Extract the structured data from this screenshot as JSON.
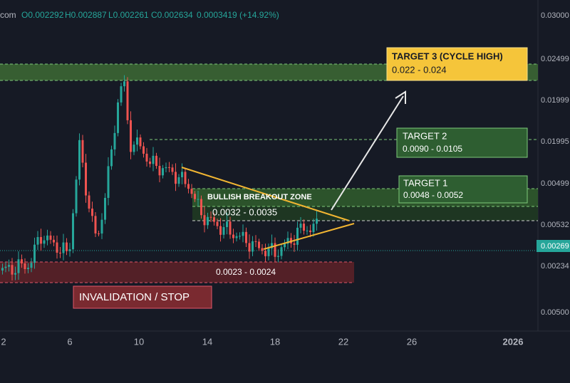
{
  "header": {
    "symbol": "com",
    "open": "O0.002292",
    "high": "H0.002887",
    "low": "L0.002261",
    "close": "C0.002634",
    "change": "0.0003419 (+14.92%)"
  },
  "price_axis": [
    "0.03000",
    "0.02499",
    "0.01999",
    "0.01995",
    "0.00499",
    "0.00532",
    "0.00234",
    "0.00500"
  ],
  "current_price": "0.00269",
  "time_axis": [
    "2",
    "6",
    "10",
    "14",
    "18",
    "22",
    "26",
    "2026"
  ],
  "annotations": {
    "target3": {
      "title": "TARGET 3 (CYCLE HIGH)",
      "range": "0.022 - 0.024"
    },
    "target2": {
      "title": "TARGET 2",
      "range": "0.0090 - 0.0105"
    },
    "target1": {
      "title": "TARGET 1",
      "range": "0.0048 - 0.0052"
    },
    "breakout": {
      "title": "BULLISH BREAKOUT ZONE",
      "range": "0.0032 - 0.0035"
    },
    "support": {
      "range": "0.0023 - 0.0024"
    },
    "invalidation": {
      "title": "INVALIDATION / STOP"
    }
  }
}
